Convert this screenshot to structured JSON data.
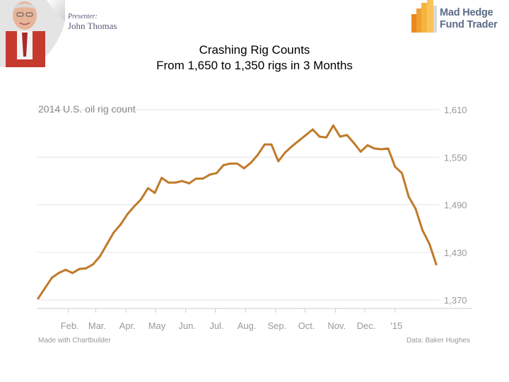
{
  "header": {
    "presenter_label": "Presenter:",
    "presenter_name": "John Thomas",
    "brand_line1": "Mad Hedge",
    "brand_line2": "Fund Trader"
  },
  "slide": {
    "title_line1": "Crashing Rig Counts",
    "title_line2": "From 1,650 to 1,350 rigs in 3 Months"
  },
  "colors": {
    "line": "#c07a2a",
    "grid": "#e6e6e6",
    "axis": "#cccccc",
    "logo_orange": "#f0a030"
  },
  "chart_data": {
    "type": "line",
    "title": "2014 U.S. oil rig count",
    "xlabel": "",
    "ylabel": "",
    "source": "Data: Baker Hughes",
    "credit": "Made with Chartbuilder",
    "ylim": [
      1370,
      1610
    ],
    "y_ticks": [
      1610,
      1550,
      1490,
      1430,
      1370
    ],
    "y_tick_labels": [
      "1,610",
      "1,550",
      "1,490",
      "1,430",
      "1,370"
    ],
    "x_ticks": [
      {
        "label": "Feb.",
        "week": 4.4
      },
      {
        "label": "Mar.",
        "week": 8.4
      },
      {
        "label": "Apr.",
        "week": 12.8
      },
      {
        "label": "May",
        "week": 17.1
      },
      {
        "label": "Jun.",
        "week": 21.5
      },
      {
        "label": "Jul.",
        "week": 25.8
      },
      {
        "label": "Aug.",
        "week": 30.2
      },
      {
        "label": "Sep.",
        "week": 34.6
      },
      {
        "label": "Oct.",
        "week": 38.9
      },
      {
        "label": "Nov.",
        "week": 43.3
      },
      {
        "label": "Dec.",
        "week": 47.6
      },
      {
        "label": "'15",
        "week": 52.0
      }
    ],
    "series": [
      {
        "x": [
          0,
          1,
          2,
          3,
          4,
          5,
          6,
          7,
          8,
          9,
          10,
          11,
          12,
          13,
          14,
          15,
          16,
          17,
          18,
          19,
          20,
          21,
          22,
          23,
          24,
          25,
          26,
          27,
          28,
          29,
          30,
          31,
          32,
          33,
          34,
          35,
          36,
          37,
          38,
          39,
          40,
          41,
          42,
          43,
          44,
          45,
          46,
          47,
          48,
          49,
          50,
          51
        ],
        "values": [
          1372,
          1385,
          1398,
          1404,
          1408,
          1404,
          1409,
          1410,
          1415,
          1425,
          1440,
          1455,
          1465,
          1478,
          1488,
          1497,
          1511,
          1505,
          1524,
          1518,
          1518,
          1520,
          1517,
          1523,
          1523,
          1528,
          1530,
          1540,
          1542,
          1542,
          1536,
          1543,
          1553,
          1566,
          1566,
          1545,
          1556,
          1564,
          1571,
          1578,
          1585,
          1576,
          1575,
          1590,
          1576,
          1578,
          1568,
          1557,
          1565,
          1561,
          1560,
          1561
        ]
      },
      {
        "x": [
          52,
          53,
          54,
          55,
          56,
          57,
          58
        ],
        "values": [
          1538,
          1530,
          1500,
          1485,
          1458,
          1441,
          1415
        ]
      }
    ]
  }
}
